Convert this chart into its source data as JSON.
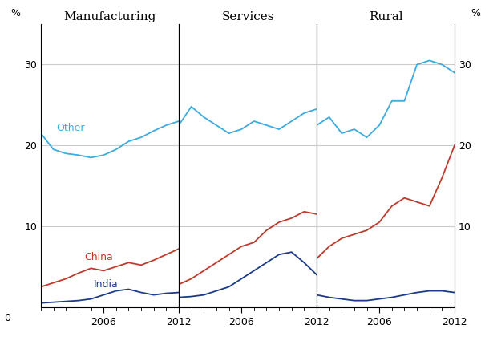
{
  "years": [
    2001,
    2002,
    2003,
    2004,
    2005,
    2006,
    2007,
    2008,
    2009,
    2010,
    2011,
    2012
  ],
  "manufacturing": {
    "other": [
      21.5,
      19.5,
      19.0,
      18.8,
      18.5,
      18.8,
      19.5,
      20.5,
      21.0,
      21.8,
      22.5,
      23.0
    ],
    "china": [
      2.5,
      3.0,
      3.5,
      4.2,
      4.8,
      4.5,
      5.0,
      5.5,
      5.2,
      5.8,
      6.5,
      7.2
    ],
    "india": [
      0.5,
      0.6,
      0.7,
      0.8,
      1.0,
      1.5,
      2.0,
      2.2,
      1.8,
      1.5,
      1.7,
      1.8
    ]
  },
  "services": {
    "other": [
      22.5,
      24.8,
      23.5,
      22.5,
      21.5,
      22.0,
      23.0,
      22.5,
      22.0,
      23.0,
      24.0,
      24.5
    ],
    "china": [
      2.8,
      3.5,
      4.5,
      5.5,
      6.5,
      7.5,
      8.0,
      9.5,
      10.5,
      11.0,
      11.8,
      11.5
    ],
    "india": [
      1.2,
      1.3,
      1.5,
      2.0,
      2.5,
      3.5,
      4.5,
      5.5,
      6.5,
      6.8,
      5.5,
      4.0
    ]
  },
  "rural": {
    "other": [
      22.5,
      23.5,
      21.5,
      22.0,
      21.0,
      22.5,
      25.5,
      25.5,
      30.0,
      30.5,
      30.0,
      29.0
    ],
    "china": [
      6.0,
      7.5,
      8.5,
      9.0,
      9.5,
      10.5,
      12.5,
      13.5,
      13.0,
      12.5,
      16.0,
      20.0
    ],
    "india": [
      1.5,
      1.2,
      1.0,
      0.8,
      0.8,
      1.0,
      1.2,
      1.5,
      1.8,
      2.0,
      2.0,
      1.8
    ]
  },
  "other_color": "#3aace0",
  "china_color": "#c0392b",
  "india_color": "#1a3a8a",
  "ylim": [
    0,
    35
  ],
  "yticks": [
    0,
    10,
    20,
    30
  ],
  "panel_keys": [
    "manufacturing",
    "services",
    "rural"
  ],
  "panel_labels": [
    "Manufacturing",
    "Services",
    "Rural"
  ]
}
